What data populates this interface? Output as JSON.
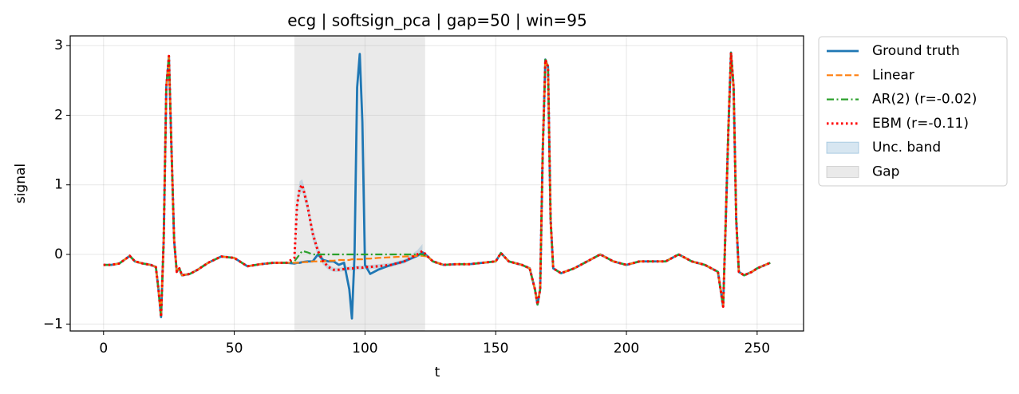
{
  "chart_data": {
    "type": "line",
    "title": "ecg | softsign_pca | gap=50 | win=95",
    "xlabel": "t",
    "ylabel": "signal",
    "xlim": [
      -12.75,
      267.75
    ],
    "ylim": [
      -1.1,
      3.14
    ],
    "xticks": [
      0,
      50,
      100,
      150,
      200,
      250
    ],
    "yticks": [
      {
        "value": -1,
        "label": "−1"
      },
      0,
      1,
      2,
      3
    ],
    "grid": true,
    "legend": "outside upper right",
    "x": [
      0,
      3,
      6,
      9,
      10,
      12,
      15,
      18,
      20,
      21,
      22,
      23,
      24,
      25,
      26,
      27,
      28,
      29,
      30,
      33,
      36,
      40,
      45,
      50,
      55,
      60,
      65,
      70,
      73,
      74,
      75,
      76,
      78,
      80,
      82,
      84,
      86,
      88,
      90,
      92,
      94,
      95,
      96,
      97,
      98,
      99,
      100,
      102,
      105,
      110,
      115,
      120,
      122,
      124,
      126,
      130,
      135,
      140,
      145,
      150,
      152,
      155,
      160,
      163,
      165,
      166,
      167,
      168,
      169,
      170,
      171,
      172,
      175,
      180,
      185,
      190,
      195,
      200,
      205,
      210,
      215,
      220,
      225,
      230,
      235,
      236,
      237,
      238,
      239,
      240,
      241,
      242,
      243,
      245,
      248,
      250,
      255
    ],
    "series": [
      {
        "name": "Ground truth",
        "color": "#1f77b4",
        "style": "solid",
        "values": [
          -0.15,
          -0.15,
          -0.13,
          -0.05,
          -0.02,
          -0.1,
          -0.13,
          -0.15,
          -0.18,
          -0.5,
          -0.9,
          0.2,
          2.4,
          2.85,
          1.5,
          0.2,
          -0.25,
          -0.2,
          -0.3,
          -0.28,
          -0.22,
          -0.12,
          -0.03,
          -0.05,
          -0.17,
          -0.14,
          -0.12,
          -0.12,
          -0.13,
          -0.12,
          -0.12,
          -0.11,
          -0.1,
          -0.1,
          0.0,
          -0.08,
          -0.1,
          -0.1,
          -0.15,
          -0.12,
          -0.5,
          -0.92,
          0.0,
          2.4,
          2.88,
          1.9,
          -0.15,
          -0.28,
          -0.22,
          -0.15,
          -0.1,
          -0.02,
          0.03,
          -0.03,
          -0.1,
          -0.15,
          -0.14,
          -0.14,
          -0.12,
          -0.1,
          0.02,
          -0.1,
          -0.15,
          -0.2,
          -0.5,
          -0.72,
          -0.5,
          1.5,
          2.8,
          2.7,
          0.5,
          -0.2,
          -0.27,
          -0.2,
          -0.1,
          0.0,
          -0.1,
          -0.15,
          -0.1,
          -0.1,
          -0.1,
          0.0,
          -0.1,
          -0.15,
          -0.25,
          -0.5,
          -0.75,
          0.5,
          1.8,
          2.9,
          2.4,
          0.5,
          -0.25,
          -0.3,
          -0.25,
          -0.2,
          -0.12
        ]
      },
      {
        "name": "Linear",
        "color": "#ff7f0e",
        "style": "dashed",
        "values": [
          -0.15,
          -0.15,
          -0.13,
          -0.05,
          -0.02,
          -0.1,
          -0.13,
          -0.15,
          -0.18,
          -0.5,
          -0.9,
          0.2,
          2.4,
          2.85,
          1.5,
          0.2,
          -0.25,
          -0.2,
          -0.3,
          -0.28,
          -0.22,
          -0.12,
          -0.03,
          -0.05,
          -0.17,
          -0.14,
          -0.12,
          -0.12,
          -0.12,
          -0.12,
          -0.12,
          -0.11,
          -0.11,
          -0.1,
          -0.1,
          -0.1,
          -0.09,
          -0.09,
          -0.08,
          -0.08,
          -0.08,
          -0.07,
          -0.07,
          -0.07,
          -0.07,
          -0.07,
          -0.06,
          -0.06,
          -0.05,
          -0.04,
          -0.03,
          -0.02,
          -0.02,
          -0.03,
          -0.1,
          -0.15,
          -0.14,
          -0.14,
          -0.12,
          -0.1,
          0.02,
          -0.1,
          -0.15,
          -0.2,
          -0.5,
          -0.72,
          -0.5,
          1.5,
          2.8,
          2.7,
          0.5,
          -0.2,
          -0.27,
          -0.2,
          -0.1,
          0.0,
          -0.1,
          -0.15,
          -0.1,
          -0.1,
          -0.1,
          0.0,
          -0.1,
          -0.15,
          -0.25,
          -0.5,
          -0.75,
          0.5,
          1.8,
          2.9,
          2.4,
          0.5,
          -0.25,
          -0.3,
          -0.25,
          -0.2,
          -0.12
        ]
      },
      {
        "name": "AR(2) (r=-0.02)",
        "color": "#2ca02c",
        "style": "dashdot",
        "values": [
          -0.15,
          -0.15,
          -0.13,
          -0.05,
          -0.02,
          -0.1,
          -0.13,
          -0.15,
          -0.18,
          -0.5,
          -0.9,
          0.2,
          2.4,
          2.85,
          1.5,
          0.2,
          -0.25,
          -0.2,
          -0.3,
          -0.28,
          -0.22,
          -0.12,
          -0.03,
          -0.05,
          -0.17,
          -0.14,
          -0.12,
          -0.12,
          -0.1,
          -0.05,
          0.0,
          0.05,
          0.03,
          0.0,
          0.0,
          0.0,
          0.0,
          0.0,
          0.0,
          0.0,
          0.0,
          0.0,
          0.0,
          0.0,
          0.0,
          0.0,
          0.0,
          0.0,
          0.0,
          0.0,
          0.0,
          0.0,
          0.0,
          -0.03,
          -0.1,
          -0.15,
          -0.14,
          -0.14,
          -0.12,
          -0.1,
          0.02,
          -0.1,
          -0.15,
          -0.2,
          -0.5,
          -0.72,
          -0.5,
          1.5,
          2.8,
          2.7,
          0.5,
          -0.2,
          -0.27,
          -0.2,
          -0.1,
          0.0,
          -0.1,
          -0.15,
          -0.1,
          -0.1,
          -0.1,
          0.0,
          -0.1,
          -0.15,
          -0.25,
          -0.5,
          -0.75,
          0.5,
          1.8,
          2.9,
          2.4,
          0.5,
          -0.25,
          -0.3,
          -0.25,
          -0.2,
          -0.12
        ]
      },
      {
        "name": "EBM (r=-0.11)",
        "color": "#ff0000",
        "style": "dotted",
        "values": [
          -0.15,
          -0.15,
          -0.13,
          -0.05,
          -0.02,
          -0.1,
          -0.13,
          -0.15,
          -0.18,
          -0.5,
          -0.9,
          0.2,
          2.4,
          2.85,
          1.5,
          0.2,
          -0.25,
          -0.2,
          -0.3,
          -0.28,
          -0.22,
          -0.12,
          -0.03,
          -0.05,
          -0.17,
          -0.14,
          -0.12,
          -0.12,
          -0.05,
          0.7,
          0.95,
          1.0,
          0.7,
          0.3,
          0.05,
          -0.1,
          -0.18,
          -0.22,
          -0.22,
          -0.21,
          -0.2,
          -0.2,
          -0.2,
          -0.19,
          -0.19,
          -0.19,
          -0.18,
          -0.18,
          -0.17,
          -0.15,
          -0.1,
          0.0,
          0.05,
          -0.03,
          -0.1,
          -0.15,
          -0.14,
          -0.14,
          -0.12,
          -0.1,
          0.02,
          -0.1,
          -0.15,
          -0.2,
          -0.5,
          -0.72,
          -0.5,
          1.5,
          2.8,
          2.7,
          0.5,
          -0.2,
          -0.27,
          -0.2,
          -0.1,
          0.0,
          -0.1,
          -0.15,
          -0.1,
          -0.1,
          -0.1,
          0.0,
          -0.1,
          -0.15,
          -0.25,
          -0.5,
          -0.75,
          0.5,
          1.8,
          2.9,
          2.4,
          0.5,
          -0.25,
          -0.3,
          -0.25,
          -0.2,
          -0.12
        ]
      }
    ],
    "band": {
      "name": "Unc. band",
      "color": "#1f77b4",
      "x": [
        73,
        74,
        75,
        76,
        78,
        80,
        82,
        84,
        86,
        88,
        90,
        92,
        94,
        95,
        96,
        97,
        98,
        99,
        100,
        102,
        105,
        110,
        115,
        120,
        122
      ],
      "lower": [
        -0.12,
        0.6,
        0.85,
        0.9,
        0.6,
        0.2,
        -0.02,
        -0.15,
        -0.22,
        -0.25,
        -0.25,
        -0.24,
        -0.23,
        -0.23,
        -0.23,
        -0.22,
        -0.22,
        -0.22,
        -0.21,
        -0.21,
        -0.2,
        -0.18,
        -0.13,
        -0.04,
        -0.02
      ],
      "upper": [
        0.0,
        0.8,
        1.05,
        1.08,
        0.8,
        0.4,
        0.12,
        -0.05,
        -0.14,
        -0.19,
        -0.19,
        -0.18,
        -0.17,
        -0.17,
        -0.17,
        -0.16,
        -0.16,
        -0.16,
        -0.15,
        -0.15,
        -0.14,
        -0.12,
        -0.07,
        0.06,
        0.15
      ]
    },
    "gap": {
      "name": "Gap",
      "color": "#808080",
      "xrange": [
        73,
        123
      ]
    }
  }
}
